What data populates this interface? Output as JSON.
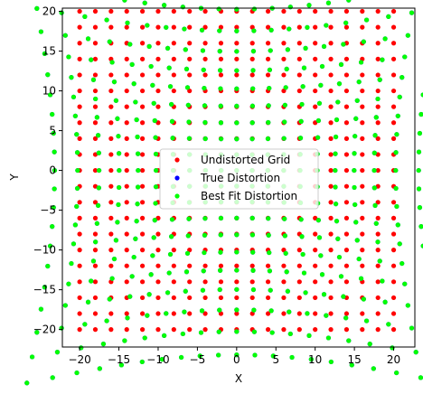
{
  "chart_data": {
    "type": "scatter",
    "title": "",
    "xlabel": "X",
    "ylabel": "Y",
    "xlim": [
      -22.2,
      22.7
    ],
    "ylim": [
      -22.2,
      20.4
    ],
    "xticks": [
      -20,
      -15,
      -10,
      -5,
      0,
      5,
      10,
      15,
      20
    ],
    "yticks": [
      -20,
      -15,
      -10,
      -5,
      0,
      5,
      10,
      15,
      20
    ],
    "grid": false,
    "legend_position": "center",
    "grid_points": {
      "start": -20,
      "stop": 20,
      "step": 2
    },
    "series": [
      {
        "name": "Undistorted Grid",
        "color": "#ff0000",
        "distortion": 0.0
      },
      {
        "name": "True Distortion",
        "color": "#0000ff",
        "distortion": 0.0045
      },
      {
        "name": "Best Fit Distortion",
        "color": "#00ff00",
        "distortion": 0.0045
      }
    ]
  }
}
